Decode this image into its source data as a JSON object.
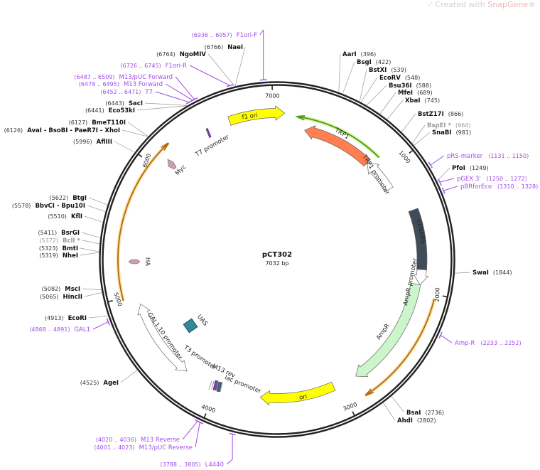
{
  "watermark": {
    "prefix": "Created with ",
    "brand": "SnapGene",
    "suffix": "®"
  },
  "plasmid": {
    "name": "pCT302",
    "length": "7032 bp",
    "total_bp": 7032
  },
  "ticks": [
    "1000",
    "2000",
    "3000",
    "4000",
    "5000",
    "6000",
    "7000"
  ],
  "enzymes": [
    {
      "name": "AarI",
      "pos": "396"
    },
    {
      "name": "BsgI",
      "pos": "422"
    },
    {
      "name": "BstXI",
      "pos": "539"
    },
    {
      "name": "EcoRV",
      "pos": "548"
    },
    {
      "name": "Bsu36I",
      "pos": "588"
    },
    {
      "name": "MfeI",
      "pos": "689"
    },
    {
      "name": "XbaI",
      "pos": "745"
    },
    {
      "name": "BstZ17I",
      "pos": "866"
    },
    {
      "name": "BspEI *",
      "pos": "964",
      "dimmed": true
    },
    {
      "name": "SnaBI",
      "pos": "981"
    },
    {
      "name": "PfoI",
      "pos": "1249"
    },
    {
      "name": "SwaI",
      "pos": "1844"
    },
    {
      "name": "BsaI",
      "pos": "2736"
    },
    {
      "name": "AhdI",
      "pos": "2802"
    },
    {
      "name": "AgeI",
      "pos": "4525"
    },
    {
      "name": "EcoRI",
      "pos": "4913"
    },
    {
      "name": "HincII",
      "pos": "5065"
    },
    {
      "name": "MscI",
      "pos": "5082"
    },
    {
      "name": "NheI",
      "pos": "5319"
    },
    {
      "name": "BmtI",
      "pos": "5323"
    },
    {
      "name": "BclI *",
      "pos": "5372",
      "dimmed": true
    },
    {
      "name": "BsrGI",
      "pos": "5411"
    },
    {
      "name": "KflI",
      "pos": "5510"
    },
    {
      "name": "BbvCI  - Bpu10I",
      "pos": "5578"
    },
    {
      "name": "BtgI",
      "pos": "5622"
    },
    {
      "name": "AflIII",
      "pos": "5996"
    },
    {
      "name": "AvaI  - BsoBI  - PaeR7I  - XhoI",
      "pos": "6126"
    },
    {
      "name": "BmeT110I",
      "pos": "6127"
    },
    {
      "name": "Eco53kI",
      "pos": "6441"
    },
    {
      "name": "SacI",
      "pos": "6443"
    },
    {
      "name": "NgoMIV",
      "pos": "6764"
    },
    {
      "name": "NaeI",
      "pos": "6766"
    }
  ],
  "primers": [
    {
      "name": "pRS-marker",
      "range": "1131 .. 1150"
    },
    {
      "name": "pGEX 3'",
      "range": "1250 .. 1272"
    },
    {
      "name": "pBRforEco",
      "range": "1310 .. 1328"
    },
    {
      "name": "Amp-R",
      "range": "2233 .. 2252"
    },
    {
      "name": "L4440",
      "range": "3788 .. 3805"
    },
    {
      "name": "M13/pUC Reverse",
      "range": "4001 .. 4023"
    },
    {
      "name": "M13 Reverse",
      "range": "4020 .. 4036"
    },
    {
      "name": "GAL1",
      "range": "4868 .. 4891"
    },
    {
      "name": "T7",
      "range": "6452 .. 6471"
    },
    {
      "name": "M13 Forward",
      "range": "6478 .. 6495"
    },
    {
      "name": "M13/pUC Forward",
      "range": "6487 .. 6509"
    },
    {
      "name": "F1ori-R",
      "range": "6726 .. 6745"
    },
    {
      "name": "F1ori-F",
      "range": "6936 .. 6957"
    }
  ],
  "features": [
    {
      "name": "f1 ori",
      "color": "#ffff00"
    },
    {
      "name": "TRP1",
      "color": "#ff7f50"
    },
    {
      "name": "TRP1 promoter",
      "color": "#ffffff"
    },
    {
      "name": "CENARS",
      "color": "#3f4d5a"
    },
    {
      "name": "AmpR promoter",
      "color": "#ffffff"
    },
    {
      "name": "AmpR",
      "color": "#ccf5cc"
    },
    {
      "name": "ori",
      "color": "#ffff00"
    },
    {
      "name": "lac promoter",
      "color": "#ffffff"
    },
    {
      "name": "M13 rev",
      "color": "#7b3fc4"
    },
    {
      "name": "T3 promoter",
      "color": "#ffffff"
    },
    {
      "name": "UAS",
      "color": "#2f8a9c"
    },
    {
      "name": "GAL1,10 promoter",
      "color": "#ffffff"
    },
    {
      "name": "HA",
      "color": "#c8a0b4"
    },
    {
      "name": "Myc",
      "color": "#c8a0b4"
    },
    {
      "name": "T7 promoter",
      "color": "#7b3fc4"
    }
  ],
  "colors": {
    "primer": "#a24de6",
    "orf_line": "#b06a10",
    "orf_glow": "#ffd27a",
    "trp1_line": "#4a9a10",
    "trp1_glow": "#c8f07a",
    "backbone": "#222222"
  }
}
